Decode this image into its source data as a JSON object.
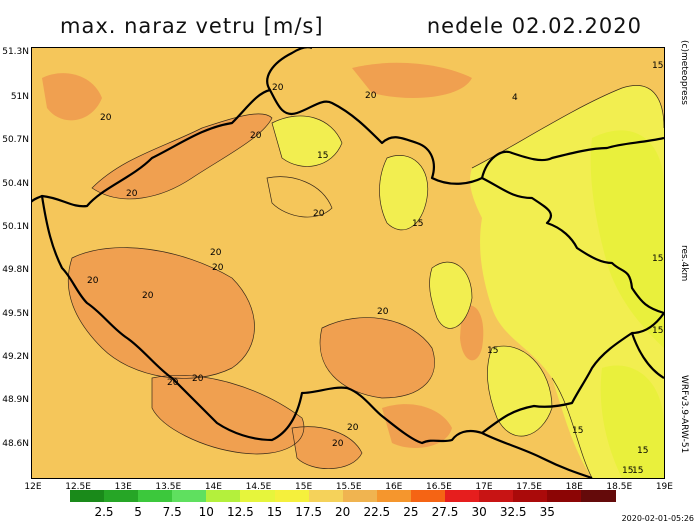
{
  "header": {
    "title": "max. naraz vetru [m/s]",
    "date": "nedele 02.02.2020"
  },
  "credits": {
    "copyright": "(c)meteopress",
    "resolution": "res.4km",
    "model": "WRFv3.9-ARW-51"
  },
  "footer": {
    "timestamp": "2020-02-01-05:26"
  },
  "axes": {
    "latitudes": [
      "51.3N",
      "51N",
      "50.7N",
      "50.4N",
      "50.1N",
      "49.8N",
      "49.5N",
      "49.2N",
      "48.9N",
      "48.6N"
    ],
    "longitudes": [
      "12E",
      "12.5E",
      "13E",
      "13.5E",
      "14E",
      "14.5E",
      "15E",
      "15.5E",
      "16E",
      "16.5E",
      "17E",
      "17.5E",
      "18E",
      "18.5E",
      "19E"
    ]
  },
  "legend": {
    "colors": [
      "#1a8a1a",
      "#26a626",
      "#3cc83c",
      "#5fe05f",
      "#b4f03c",
      "#e6f53c",
      "#f5f03c",
      "#f5d25a",
      "#f0b450",
      "#f5962d",
      "#f56414",
      "#e61e1e",
      "#c81414",
      "#aa0a0a",
      "#8c0505",
      "#640a0a"
    ],
    "labels": [
      "2.5",
      "5",
      "7.5",
      "10",
      "12.5",
      "15",
      "17.5",
      "20",
      "22.5",
      "25",
      "27.5",
      "30",
      "32.5",
      "35"
    ]
  },
  "contour_labels": [
    "20",
    "20",
    "20",
    "20",
    "20",
    "20",
    "20",
    "20",
    "20",
    "20",
    "15",
    "15",
    "15",
    "15",
    "15",
    "15",
    "20",
    "20",
    "20",
    "15",
    "20",
    "20",
    "15",
    "15",
    "15",
    "4"
  ],
  "colors": {
    "base": "#f5c65a",
    "high": "#f0a050",
    "low": "#f2ee50",
    "lower": "#e9f03c",
    "border": "#000000"
  }
}
